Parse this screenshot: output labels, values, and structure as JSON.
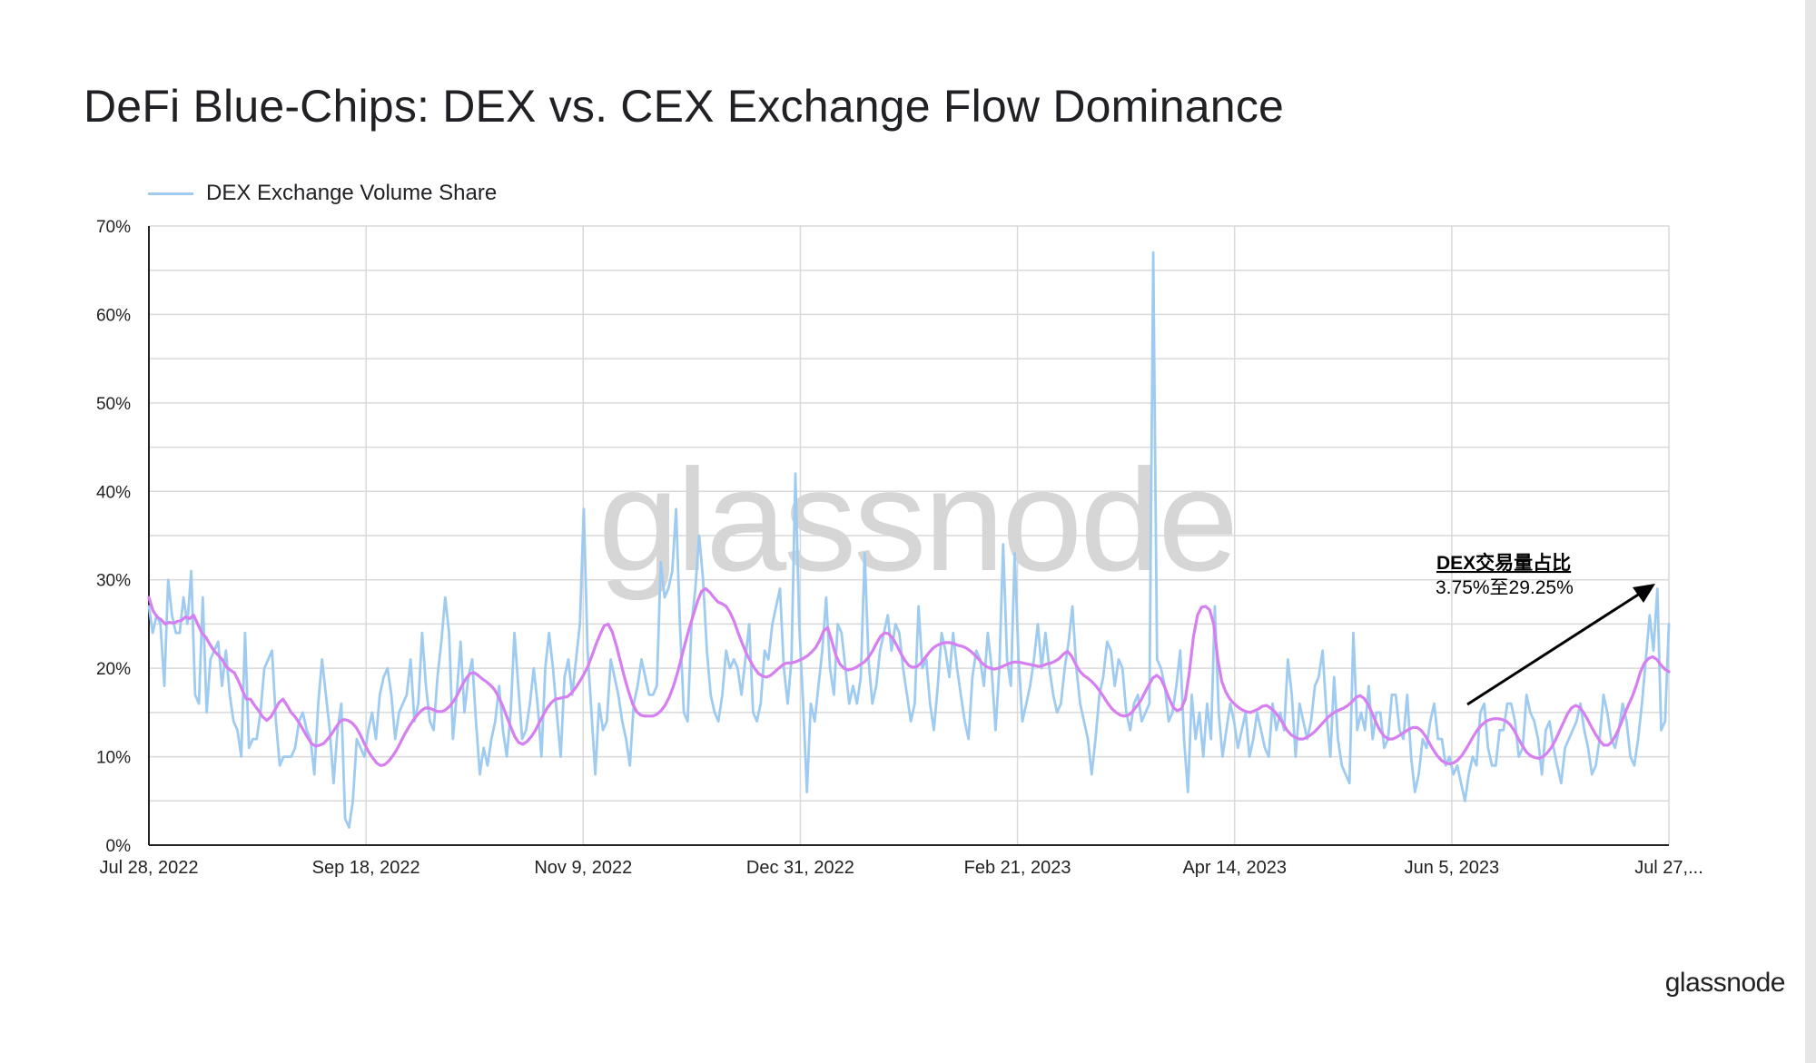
{
  "title": "DeFi Blue-Chips: DEX vs. CEX Exchange Flow Dominance",
  "legend": {
    "label": "DEX Exchange Volume Share"
  },
  "watermark": "glassnode",
  "brand": "glassnode",
  "annotation": {
    "title": "DEX交易量占比",
    "subtitle": "3.75%至29.25%"
  },
  "colors": {
    "series": "#9fcbf0",
    "moving_average": "#d57ff0",
    "grid": "#d9d9d9",
    "axis": "#222222",
    "watermark": "#d6d6d6"
  },
  "chart_data": {
    "type": "line",
    "xlabel": "",
    "ylabel": "",
    "ylim": [
      0,
      70
    ],
    "y_ticks": [
      "0%",
      "10%",
      "20%",
      "30%",
      "40%",
      "50%",
      "60%",
      "70%"
    ],
    "x_ticks": [
      "Jul 28, 2022",
      "Sep 18, 2022",
      "Nov 9, 2022",
      "Dec 31, 2022",
      "Feb 21, 2023",
      "Apr 14, 2023",
      "Jun 5, 2023",
      "Jul 27,..."
    ],
    "x_range": [
      "2022-07-28",
      "2023-07-27"
    ],
    "grid": true,
    "legend_position": "top-left",
    "series": [
      {
        "name": "DEX Exchange Volume Share",
        "values": [
          27,
          24,
          26,
          25,
          18,
          30,
          26,
          24,
          24,
          28,
          25,
          31,
          17,
          16,
          28,
          15,
          21,
          22,
          23,
          18,
          22,
          17,
          14,
          13,
          10,
          24,
          11,
          12,
          12,
          15,
          20,
          21,
          22,
          14,
          9,
          10,
          10,
          10,
          11,
          14,
          15,
          13,
          12,
          8,
          16,
          21,
          17,
          13,
          7,
          13,
          16,
          3,
          2,
          5,
          12,
          11,
          10,
          13,
          15,
          12,
          17,
          19,
          20,
          17,
          12,
          15,
          16,
          17,
          21,
          14,
          16,
          24,
          18,
          14,
          13,
          19,
          23,
          28,
          24,
          12,
          17,
          23,
          15,
          19,
          21,
          14,
          8,
          11,
          9,
          12,
          14,
          18,
          13,
          10,
          15,
          24,
          18,
          12,
          13,
          16,
          20,
          16,
          10,
          20,
          24,
          20,
          15,
          10,
          19,
          21,
          17,
          21,
          25,
          38,
          22,
          15,
          8,
          16,
          13,
          14,
          21,
          19,
          17,
          14,
          12,
          9,
          16,
          18,
          21,
          19,
          17,
          17,
          18,
          32,
          28,
          29,
          31,
          38,
          25,
          15,
          14,
          25,
          29,
          35,
          30,
          22,
          17,
          15,
          14,
          17,
          22,
          20,
          21,
          20,
          17,
          21,
          25,
          15,
          14,
          16,
          22,
          21,
          25,
          27,
          29,
          20,
          16,
          21,
          42,
          25,
          16,
          6,
          16,
          14,
          18,
          22,
          28,
          20,
          17,
          25,
          24,
          20,
          16,
          18,
          16,
          19,
          33,
          21,
          16,
          18,
          22,
          24,
          26,
          22,
          25,
          24,
          20,
          17,
          14,
          16,
          27,
          20,
          21,
          16,
          13,
          18,
          24,
          22,
          19,
          24,
          20,
          17,
          14,
          12,
          19,
          22,
          21,
          18,
          24,
          20,
          13,
          20,
          34,
          21,
          18,
          33,
          21,
          14,
          16,
          18,
          21,
          25,
          20,
          24,
          20,
          17,
          15,
          16,
          20,
          23,
          27,
          20,
          16,
          14,
          12,
          8,
          12,
          17,
          19,
          23,
          22,
          18,
          21,
          20,
          15,
          13,
          16,
          17,
          14,
          15,
          16,
          67,
          21,
          20,
          18,
          14,
          15,
          18,
          22,
          12,
          6,
          17,
          12,
          15,
          10,
          16,
          12,
          27,
          15,
          10,
          13,
          16,
          14,
          11,
          13,
          15,
          10,
          12,
          15,
          13,
          11,
          10,
          16,
          13,
          15,
          13,
          21,
          17,
          10,
          16,
          14,
          12,
          14,
          18,
          19,
          22,
          15,
          10,
          19,
          12,
          9,
          8,
          7,
          24,
          13,
          15,
          13,
          18,
          12,
          15,
          15,
          11,
          12,
          17,
          17,
          13,
          12,
          17,
          10,
          6,
          8,
          12,
          11,
          14,
          16,
          12,
          12,
          9,
          10,
          8,
          9,
          7,
          5,
          8,
          10,
          9,
          15,
          16,
          11,
          9,
          9,
          13,
          13,
          16,
          16,
          14,
          10,
          11,
          17,
          15,
          14,
          12,
          8,
          13,
          14,
          11,
          9,
          7,
          11,
          12,
          13,
          14,
          16,
          13,
          11,
          8,
          9,
          12,
          17,
          15,
          12,
          11,
          13,
          16,
          14,
          10,
          9,
          12,
          16,
          21,
          26,
          22,
          29,
          13,
          14,
          25
        ]
      },
      {
        "name": "",
        "values": [
          28,
          26.5,
          25.8,
          25.5,
          25,
          25.2,
          25.1,
          25.3,
          25.4,
          25.8,
          25.6,
          26,
          25,
          24,
          23.5,
          22.7,
          22,
          21.5,
          21,
          20.2,
          19.8,
          19.5,
          18.6,
          17.5,
          16.5,
          16.5,
          15.8,
          15.2,
          14.5,
          14.1,
          14.5,
          15.3,
          16.1,
          16.5,
          15.8,
          15,
          14.5,
          13.8,
          13,
          12.2,
          11.5,
          11.2,
          11.3,
          11.5,
          12,
          12.6,
          13.3,
          14,
          14.2,
          14.1,
          13.8,
          13.3,
          12.5,
          11.5,
          10.6,
          9.9,
          9.3,
          9,
          9.1,
          9.5,
          10.1,
          10.8,
          11.7,
          12.6,
          13.4,
          14.1,
          14.7,
          15.2,
          15.5,
          15.5,
          15.3,
          15.1,
          15.1,
          15.3,
          15.7,
          16.3,
          17.1,
          18,
          18.8,
          19.4,
          19.5,
          19.2,
          18.8,
          18.5,
          18.1,
          17.6,
          16.8,
          15.8,
          14.6,
          13.4,
          12.3,
          11.6,
          11.4,
          11.7,
          12.2,
          12.9,
          13.8,
          14.7,
          15.5,
          16.1,
          16.5,
          16.6,
          16.7,
          16.8,
          17.2,
          17.8,
          18.5,
          19.3,
          20.2,
          21.4,
          22.7,
          23.8,
          24.8,
          25,
          24.1,
          22.6,
          20.8,
          19,
          17.4,
          16,
          15.1,
          14.7,
          14.6,
          14.6,
          14.6,
          14.8,
          15.2,
          15.8,
          16.7,
          17.9,
          19.4,
          21.1,
          22.9,
          24.6,
          26.1,
          27.6,
          28.7,
          29,
          28.6,
          28,
          27.5,
          27.3,
          27,
          26.3,
          25.3,
          24,
          22.8,
          21.7,
          20.8,
          20,
          19.4,
          19.1,
          19,
          19.2,
          19.6,
          20,
          20.4,
          20.6,
          20.6,
          20.7,
          20.9,
          21.1,
          21.4,
          21.8,
          22.3,
          23.1,
          24.2,
          24.6,
          23.1,
          21.5,
          20.5,
          20,
          19.8,
          19.9,
          20.1,
          20.4,
          20.7,
          21.2,
          21.9,
          22.8,
          23.6,
          24,
          23.9,
          23.4,
          22.6,
          21.7,
          20.9,
          20.3,
          20.1,
          20.2,
          20.6,
          21.2,
          21.8,
          22.3,
          22.6,
          22.8,
          22.9,
          22.9,
          22.8,
          22.6,
          22.5,
          22.3,
          22,
          21.6,
          21.1,
          20.6,
          20.2,
          20,
          19.9,
          20,
          20.2,
          20.4,
          20.6,
          20.7,
          20.7,
          20.6,
          20.5,
          20.4,
          20.3,
          20.2,
          20.3,
          20.5,
          20.6,
          20.8,
          21.1,
          21.6,
          21.9,
          21.4,
          20.5,
          19.7,
          19.2,
          18.9,
          18.5,
          18,
          17.4,
          16.7,
          16,
          15.4,
          15,
          14.7,
          14.6,
          14.7,
          15.1,
          15.7,
          16.3,
          17.2,
          18.1,
          18.9,
          19.2,
          18.8,
          17.8,
          16.6,
          15.6,
          15.2,
          15.4,
          16.5,
          19.5,
          23.5,
          26,
          26.9,
          27,
          26.6,
          25,
          21,
          18.5,
          17.3,
          16.5,
          16,
          15.6,
          15.3,
          15.1,
          15,
          15.2,
          15.4,
          15.7,
          15.8,
          15.5,
          15.1,
          14.5,
          13.8,
          13,
          12.5,
          12.2,
          12,
          12,
          12.2,
          12.5,
          12.9,
          13.4,
          13.9,
          14.4,
          14.8,
          15.1,
          15.3,
          15.5,
          15.8,
          16.2,
          16.7,
          16.9,
          16.6,
          15.9,
          14.9,
          13.8,
          12.9,
          12.3,
          12,
          12,
          12.2,
          12.5,
          12.8,
          13.1,
          13.3,
          13.3,
          13,
          12.4,
          11.6,
          10.8,
          10.1,
          9.6,
          9.3,
          9.2,
          9.3,
          9.6,
          10.1,
          10.8,
          11.6,
          12.4,
          13.1,
          13.6,
          14,
          14.2,
          14.3,
          14.3,
          14.2,
          14,
          13.6,
          12.9,
          12,
          11.2,
          10.5,
          10.1,
          9.9,
          9.8,
          10,
          10.4,
          11,
          11.8,
          12.8,
          13.8,
          14.8,
          15.5,
          15.8,
          15.6,
          15,
          14.2,
          13.3,
          12.5,
          11.8,
          11.3,
          11.3,
          11.7,
          12.5,
          13.5,
          14.7,
          15.8,
          16.8,
          18.1,
          19.6,
          20.6,
          21.1,
          21.3,
          21,
          20.4,
          19.9,
          19.6
        ]
      }
    ]
  }
}
